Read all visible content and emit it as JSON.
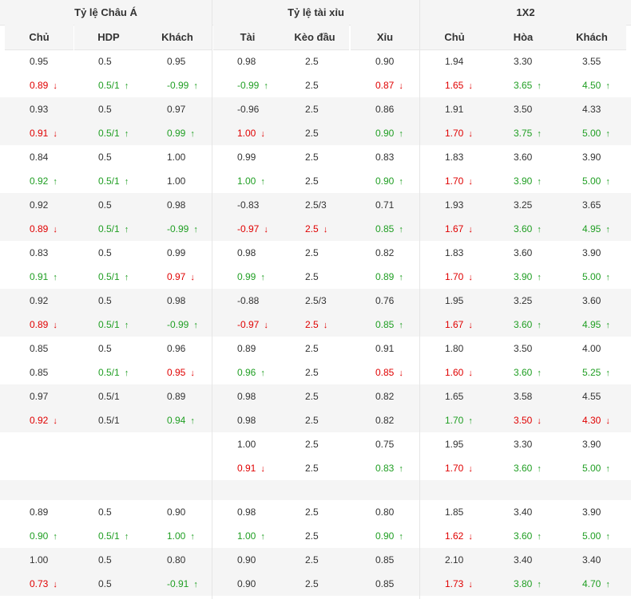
{
  "groups": [
    "Tỷ lệ Châu Á",
    "Tỷ lệ tài xỉu",
    "1X2"
  ],
  "columns": [
    "Chủ",
    "HDP",
    "Khách",
    "Tài",
    "Kèo đầu",
    "Xỉu",
    "Chủ",
    "Hòa",
    "Khách"
  ],
  "colors": {
    "up": "#1f9e22",
    "down": "#e00000",
    "header_bg": "#f5f5f5",
    "border": "#e6e6e6"
  },
  "icons": {
    "up": "arrow-up-icon",
    "down": "arrow-down-icon"
  },
  "glyphs": {
    "up": "↑",
    "down": "↓"
  },
  "blocks": [
    {
      "lines": [
        [
          [
            "0.95",
            ""
          ],
          [
            "0.5",
            ""
          ],
          [
            "0.95",
            ""
          ],
          [
            "0.98",
            ""
          ],
          [
            "2.5",
            ""
          ],
          [
            "0.90",
            ""
          ],
          [
            "1.94",
            ""
          ],
          [
            "3.30",
            ""
          ],
          [
            "3.55",
            ""
          ]
        ],
        [
          [
            "0.89",
            "down"
          ],
          [
            "0.5/1",
            "up"
          ],
          [
            "-0.99",
            "up"
          ],
          [
            "-0.99",
            "up"
          ],
          [
            "2.5",
            ""
          ],
          [
            "0.87",
            "down"
          ],
          [
            "1.65",
            "down"
          ],
          [
            "3.65",
            "up"
          ],
          [
            "4.50",
            "up"
          ]
        ]
      ]
    },
    {
      "lines": [
        [
          [
            "0.93",
            ""
          ],
          [
            "0.5",
            ""
          ],
          [
            "0.97",
            ""
          ],
          [
            "-0.96",
            ""
          ],
          [
            "2.5",
            ""
          ],
          [
            "0.86",
            ""
          ],
          [
            "1.91",
            ""
          ],
          [
            "3.50",
            ""
          ],
          [
            "4.33",
            ""
          ]
        ],
        [
          [
            "0.91",
            "down"
          ],
          [
            "0.5/1",
            "up"
          ],
          [
            "0.99",
            "up"
          ],
          [
            "1.00",
            "down"
          ],
          [
            "2.5",
            ""
          ],
          [
            "0.90",
            "up"
          ],
          [
            "1.70",
            "down"
          ],
          [
            "3.75",
            "up"
          ],
          [
            "5.00",
            "up"
          ]
        ]
      ]
    },
    {
      "lines": [
        [
          [
            "0.84",
            ""
          ],
          [
            "0.5",
            ""
          ],
          [
            "1.00",
            ""
          ],
          [
            "0.99",
            ""
          ],
          [
            "2.5",
            ""
          ],
          [
            "0.83",
            ""
          ],
          [
            "1.83",
            ""
          ],
          [
            "3.60",
            ""
          ],
          [
            "3.90",
            ""
          ]
        ],
        [
          [
            "0.92",
            "up"
          ],
          [
            "0.5/1",
            "up"
          ],
          [
            "1.00",
            ""
          ],
          [
            "1.00",
            "up"
          ],
          [
            "2.5",
            ""
          ],
          [
            "0.90",
            "up"
          ],
          [
            "1.70",
            "down"
          ],
          [
            "3.90",
            "up"
          ],
          [
            "5.00",
            "up"
          ]
        ]
      ]
    },
    {
      "lines": [
        [
          [
            "0.92",
            ""
          ],
          [
            "0.5",
            ""
          ],
          [
            "0.98",
            ""
          ],
          [
            "-0.83",
            ""
          ],
          [
            "2.5/3",
            ""
          ],
          [
            "0.71",
            ""
          ],
          [
            "1.93",
            ""
          ],
          [
            "3.25",
            ""
          ],
          [
            "3.65",
            ""
          ]
        ],
        [
          [
            "0.89",
            "down"
          ],
          [
            "0.5/1",
            "up"
          ],
          [
            "-0.99",
            "up"
          ],
          [
            "-0.97",
            "down"
          ],
          [
            "2.5",
            "down"
          ],
          [
            "0.85",
            "up"
          ],
          [
            "1.67",
            "down"
          ],
          [
            "3.60",
            "up"
          ],
          [
            "4.95",
            "up"
          ]
        ]
      ]
    },
    {
      "lines": [
        [
          [
            "0.83",
            ""
          ],
          [
            "0.5",
            ""
          ],
          [
            "0.99",
            ""
          ],
          [
            "0.98",
            ""
          ],
          [
            "2.5",
            ""
          ],
          [
            "0.82",
            ""
          ],
          [
            "1.83",
            ""
          ],
          [
            "3.60",
            ""
          ],
          [
            "3.90",
            ""
          ]
        ],
        [
          [
            "0.91",
            "up"
          ],
          [
            "0.5/1",
            "up"
          ],
          [
            "0.97",
            "down"
          ],
          [
            "0.99",
            "up"
          ],
          [
            "2.5",
            ""
          ],
          [
            "0.89",
            "up"
          ],
          [
            "1.70",
            "down"
          ],
          [
            "3.90",
            "up"
          ],
          [
            "5.00",
            "up"
          ]
        ]
      ]
    },
    {
      "lines": [
        [
          [
            "0.92",
            ""
          ],
          [
            "0.5",
            ""
          ],
          [
            "0.98",
            ""
          ],
          [
            "-0.88",
            ""
          ],
          [
            "2.5/3",
            ""
          ],
          [
            "0.76",
            ""
          ],
          [
            "1.95",
            ""
          ],
          [
            "3.25",
            ""
          ],
          [
            "3.60",
            ""
          ]
        ],
        [
          [
            "0.89",
            "down"
          ],
          [
            "0.5/1",
            "up"
          ],
          [
            "-0.99",
            "up"
          ],
          [
            "-0.97",
            "down"
          ],
          [
            "2.5",
            "down"
          ],
          [
            "0.85",
            "up"
          ],
          [
            "1.67",
            "down"
          ],
          [
            "3.60",
            "up"
          ],
          [
            "4.95",
            "up"
          ]
        ]
      ]
    },
    {
      "lines": [
        [
          [
            "0.85",
            ""
          ],
          [
            "0.5",
            ""
          ],
          [
            "0.96",
            ""
          ],
          [
            "0.89",
            ""
          ],
          [
            "2.5",
            ""
          ],
          [
            "0.91",
            ""
          ],
          [
            "1.80",
            ""
          ],
          [
            "3.50",
            ""
          ],
          [
            "4.00",
            ""
          ]
        ],
        [
          [
            "0.85",
            ""
          ],
          [
            "0.5/1",
            "up"
          ],
          [
            "0.95",
            "down"
          ],
          [
            "0.96",
            "up"
          ],
          [
            "2.5",
            ""
          ],
          [
            "0.85",
            "down"
          ],
          [
            "1.60",
            "down"
          ],
          [
            "3.60",
            "up"
          ],
          [
            "5.25",
            "up"
          ]
        ]
      ]
    },
    {
      "lines": [
        [
          [
            "0.97",
            ""
          ],
          [
            "0.5/1",
            ""
          ],
          [
            "0.89",
            ""
          ],
          [
            "0.98",
            ""
          ],
          [
            "2.5",
            ""
          ],
          [
            "0.82",
            ""
          ],
          [
            "1.65",
            ""
          ],
          [
            "3.58",
            ""
          ],
          [
            "4.55",
            ""
          ]
        ],
        [
          [
            "0.92",
            "down"
          ],
          [
            "0.5/1",
            ""
          ],
          [
            "0.94",
            "up"
          ],
          [
            "0.98",
            ""
          ],
          [
            "2.5",
            ""
          ],
          [
            "0.82",
            ""
          ],
          [
            "1.70",
            "up"
          ],
          [
            "3.50",
            "down"
          ],
          [
            "4.30",
            "down"
          ]
        ]
      ]
    },
    {
      "lines": [
        [
          [
            "",
            ""
          ],
          [
            "",
            ""
          ],
          [
            "",
            ""
          ],
          [
            "1.00",
            ""
          ],
          [
            "2.5",
            ""
          ],
          [
            "0.75",
            ""
          ],
          [
            "1.95",
            ""
          ],
          [
            "3.30",
            ""
          ],
          [
            "3.90",
            ""
          ]
        ],
        [
          [
            "",
            ""
          ],
          [
            "",
            ""
          ],
          [
            "",
            ""
          ],
          [
            "0.91",
            "down"
          ],
          [
            "2.5",
            ""
          ],
          [
            "0.83",
            "up"
          ],
          [
            "1.70",
            "down"
          ],
          [
            "3.60",
            "up"
          ],
          [
            "5.00",
            "up"
          ]
        ]
      ]
    },
    {
      "lines": []
    },
    {
      "lines": [
        [
          [
            "0.89",
            ""
          ],
          [
            "0.5",
            ""
          ],
          [
            "0.90",
            ""
          ],
          [
            "0.98",
            ""
          ],
          [
            "2.5",
            ""
          ],
          [
            "0.80",
            ""
          ],
          [
            "1.85",
            ""
          ],
          [
            "3.40",
            ""
          ],
          [
            "3.90",
            ""
          ]
        ],
        [
          [
            "0.90",
            "up"
          ],
          [
            "0.5/1",
            "up"
          ],
          [
            "1.00",
            "up"
          ],
          [
            "1.00",
            "up"
          ],
          [
            "2.5",
            ""
          ],
          [
            "0.90",
            "up"
          ],
          [
            "1.62",
            "down"
          ],
          [
            "3.60",
            "up"
          ],
          [
            "5.00",
            "up"
          ]
        ]
      ]
    },
    {
      "lines": [
        [
          [
            "1.00",
            ""
          ],
          [
            "0.5",
            ""
          ],
          [
            "0.80",
            ""
          ],
          [
            "0.90",
            ""
          ],
          [
            "2.5",
            ""
          ],
          [
            "0.85",
            ""
          ],
          [
            "2.10",
            ""
          ],
          [
            "3.40",
            ""
          ],
          [
            "3.40",
            ""
          ]
        ],
        [
          [
            "0.73",
            "down"
          ],
          [
            "0.5",
            ""
          ],
          [
            "-0.91",
            "up"
          ],
          [
            "0.90",
            ""
          ],
          [
            "2.5",
            ""
          ],
          [
            "0.85",
            ""
          ],
          [
            "1.73",
            "down"
          ],
          [
            "3.80",
            "up"
          ],
          [
            "4.70",
            "up"
          ]
        ]
      ]
    }
  ]
}
